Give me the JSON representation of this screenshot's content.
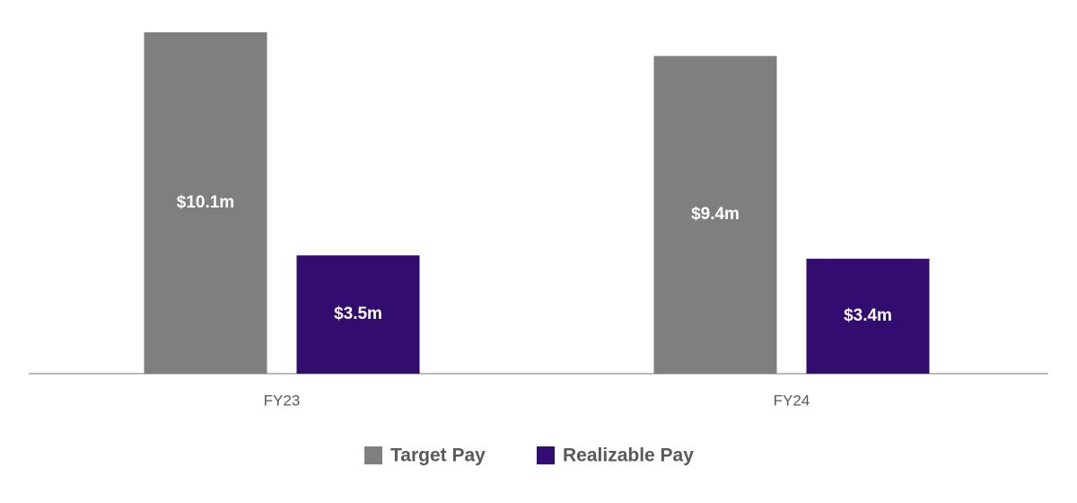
{
  "chart_data": {
    "type": "bar",
    "categories": [
      "FY23",
      "FY24"
    ],
    "series": [
      {
        "name": "Target Pay",
        "color": "#7f7f7f",
        "values": [
          10.1,
          9.4
        ],
        "value_labels": [
          "$10.1m",
          "$9.4m"
        ]
      },
      {
        "name": "Realizable Pay",
        "color": "#330c6f",
        "values": [
          3.5,
          3.4
        ],
        "value_labels": [
          "$3.5m",
          "$3.4m"
        ]
      }
    ]
  }
}
